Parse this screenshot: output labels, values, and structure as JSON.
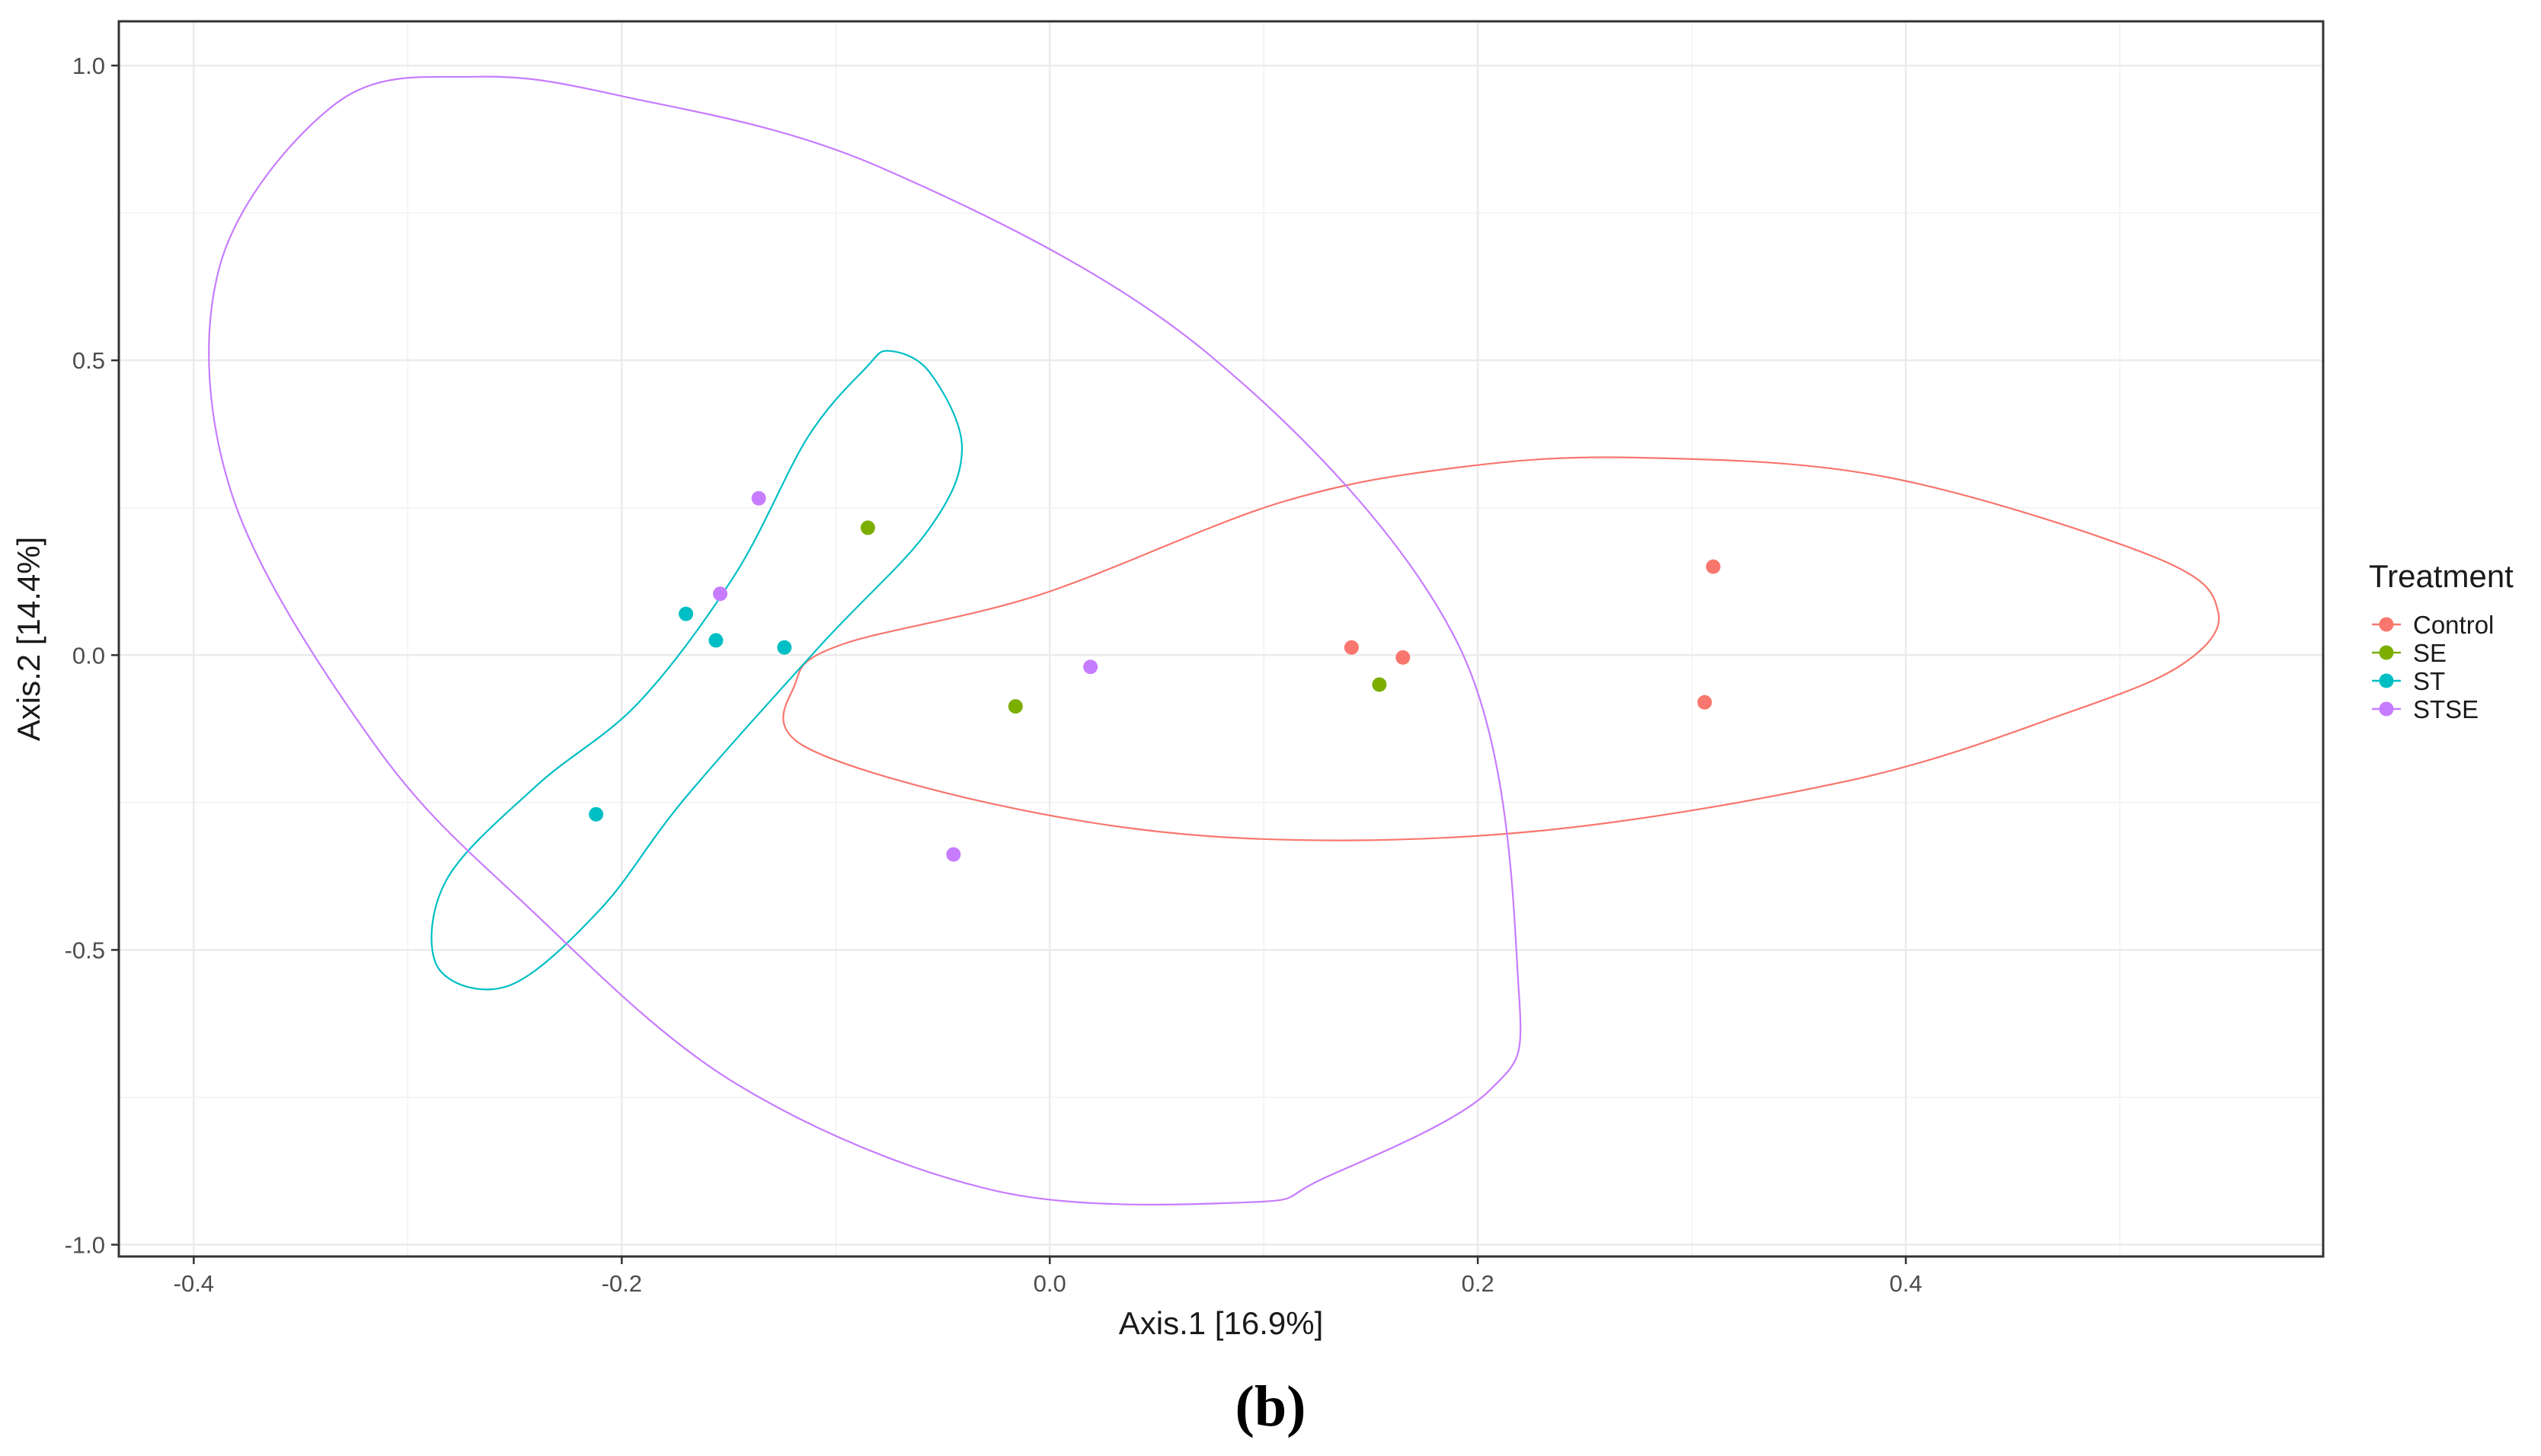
{
  "chart_data": {
    "type": "scatter",
    "title": "",
    "xlabel": "Axis.1   [16.9%]",
    "ylabel": "Axis.2   [14.4%]",
    "xlim": [
      -0.435,
      0.595
    ],
    "ylim": [
      -1.02,
      1.075
    ],
    "x_ticks": [
      -0.4,
      -0.2,
      0.0,
      0.2,
      0.4
    ],
    "x_tick_labels": [
      "-0.4",
      "-0.2",
      "0.0",
      "0.2",
      "0.4"
    ],
    "y_ticks": [
      -1.0,
      -0.5,
      0.0,
      0.5,
      1.0
    ],
    "y_tick_labels": [
      "-1.0",
      "-0.5",
      "0.0",
      "0.5",
      "1.0"
    ],
    "grid": true,
    "legend_title": "Treatment",
    "legend_position": "right",
    "caption": "(b)",
    "series": [
      {
        "name": "Control",
        "color": "#F8766D",
        "points": [
          {
            "x": 0.31,
            "y": 0.15
          },
          {
            "x": 0.306,
            "y": -0.08
          },
          {
            "x": 0.141,
            "y": 0.013
          },
          {
            "x": 0.165,
            "y": -0.004
          }
        ],
        "ellipse": [
          [
            0.273,
            0.335
          ],
          [
            0.391,
            0.302
          ],
          [
            0.517,
            0.165
          ],
          [
            0.546,
            0.072
          ],
          [
            0.529,
            -0.016
          ],
          [
            0.477,
            -0.096
          ],
          [
            0.377,
            -0.21
          ],
          [
            0.229,
            -0.298
          ],
          [
            0.093,
            -0.311
          ],
          [
            -0.018,
            -0.259
          ],
          [
            -0.115,
            -0.154
          ],
          [
            -0.119,
            -0.049
          ],
          [
            -0.098,
            0.017
          ],
          [
            -0.005,
            0.102
          ],
          [
            0.107,
            0.258
          ],
          [
            0.19,
            0.318
          ]
        ]
      },
      {
        "name": "SE",
        "color": "#7CAE00",
        "points": [
          {
            "x": -0.085,
            "y": 0.216
          },
          {
            "x": -0.016,
            "y": -0.087
          },
          {
            "x": 0.154,
            "y": -0.05
          }
        ],
        "ellipse": []
      },
      {
        "name": "ST",
        "color": "#00BFC4",
        "points": [
          {
            "x": -0.17,
            "y": 0.07
          },
          {
            "x": -0.156,
            "y": 0.025
          },
          {
            "x": -0.124,
            "y": 0.013
          },
          {
            "x": -0.212,
            "y": -0.27
          }
        ],
        "ellipse": [
          [
            -0.075,
            0.516
          ],
          [
            -0.056,
            0.479
          ],
          [
            -0.041,
            0.35
          ],
          [
            -0.057,
            0.211
          ],
          [
            -0.107,
            0.017
          ],
          [
            -0.171,
            -0.245
          ],
          [
            -0.21,
            -0.431
          ],
          [
            -0.253,
            -0.561
          ],
          [
            -0.286,
            -0.529
          ],
          [
            -0.282,
            -0.382
          ],
          [
            -0.24,
            -0.222
          ],
          [
            -0.192,
            -0.08
          ],
          [
            -0.147,
            0.137
          ],
          [
            -0.113,
            0.37
          ],
          [
            -0.086,
            0.487
          ]
        ]
      },
      {
        "name": "STSE",
        "color": "#C77CFF",
        "points": [
          {
            "x": -0.136,
            "y": 0.266
          },
          {
            "x": -0.154,
            "y": 0.104
          },
          {
            "x": 0.019,
            "y": -0.02
          },
          {
            "x": -0.045,
            "y": -0.338
          }
        ],
        "ellipse": [
          [
            -0.269,
            0.981
          ],
          [
            -0.201,
            0.949
          ],
          [
            -0.079,
            0.827
          ],
          [
            0.073,
            0.514
          ],
          [
            0.191,
            0.017
          ],
          [
            0.219,
            -0.56
          ],
          [
            0.205,
            -0.74
          ],
          [
            0.127,
            -0.889
          ],
          [
            0.093,
            -0.928
          ],
          [
            -0.026,
            -0.908
          ],
          [
            -0.147,
            -0.726
          ],
          [
            -0.245,
            -0.423
          ],
          [
            -0.315,
            -0.154
          ],
          [
            -0.382,
            0.271
          ],
          [
            -0.388,
            0.658
          ],
          [
            -0.333,
            0.937
          ]
        ]
      }
    ]
  }
}
